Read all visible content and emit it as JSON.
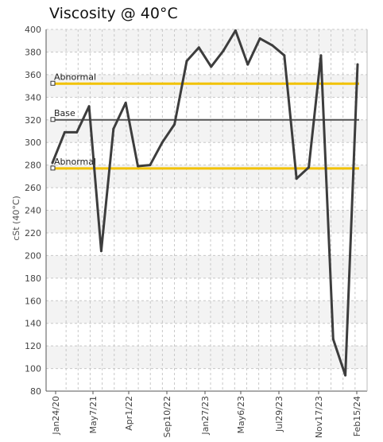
{
  "chart_data": {
    "type": "line",
    "title": "Viscosity @ 40°C",
    "ylabel": "cSt (40°C)",
    "xlabel": "",
    "ylim": [
      80,
      400
    ],
    "y_ticks": [
      80,
      100,
      120,
      140,
      160,
      180,
      200,
      220,
      240,
      260,
      280,
      300,
      320,
      340,
      360,
      380,
      400
    ],
    "x_tick_labels": [
      "Jan24/20",
      "May7/21",
      "Apr1/22",
      "Sep10/22",
      "Jan27/23",
      "May6/23",
      "Jul29/23",
      "Nov17/23",
      "Feb15/24"
    ],
    "grid": true,
    "colors": {
      "series": "#3d3d3d",
      "abnormal": "#f2c200",
      "base": "#555555",
      "grid": "#c8c8c8",
      "band": "#f3f3f3"
    },
    "reference_lines": [
      {
        "label": "Abnormal",
        "value": 352,
        "color": "#f2c200"
      },
      {
        "label": "Base",
        "value": 320,
        "color": "#555555"
      },
      {
        "label": "Abnormal",
        "value": 277,
        "color": "#f2c200"
      }
    ],
    "series": [
      {
        "values": [
          282,
          309,
          309,
          332,
          204,
          312,
          335,
          279,
          280,
          300,
          316,
          372,
          384,
          367,
          381,
          399,
          369,
          392,
          386,
          377,
          268,
          278,
          377,
          126,
          94,
          369
        ]
      }
    ]
  }
}
